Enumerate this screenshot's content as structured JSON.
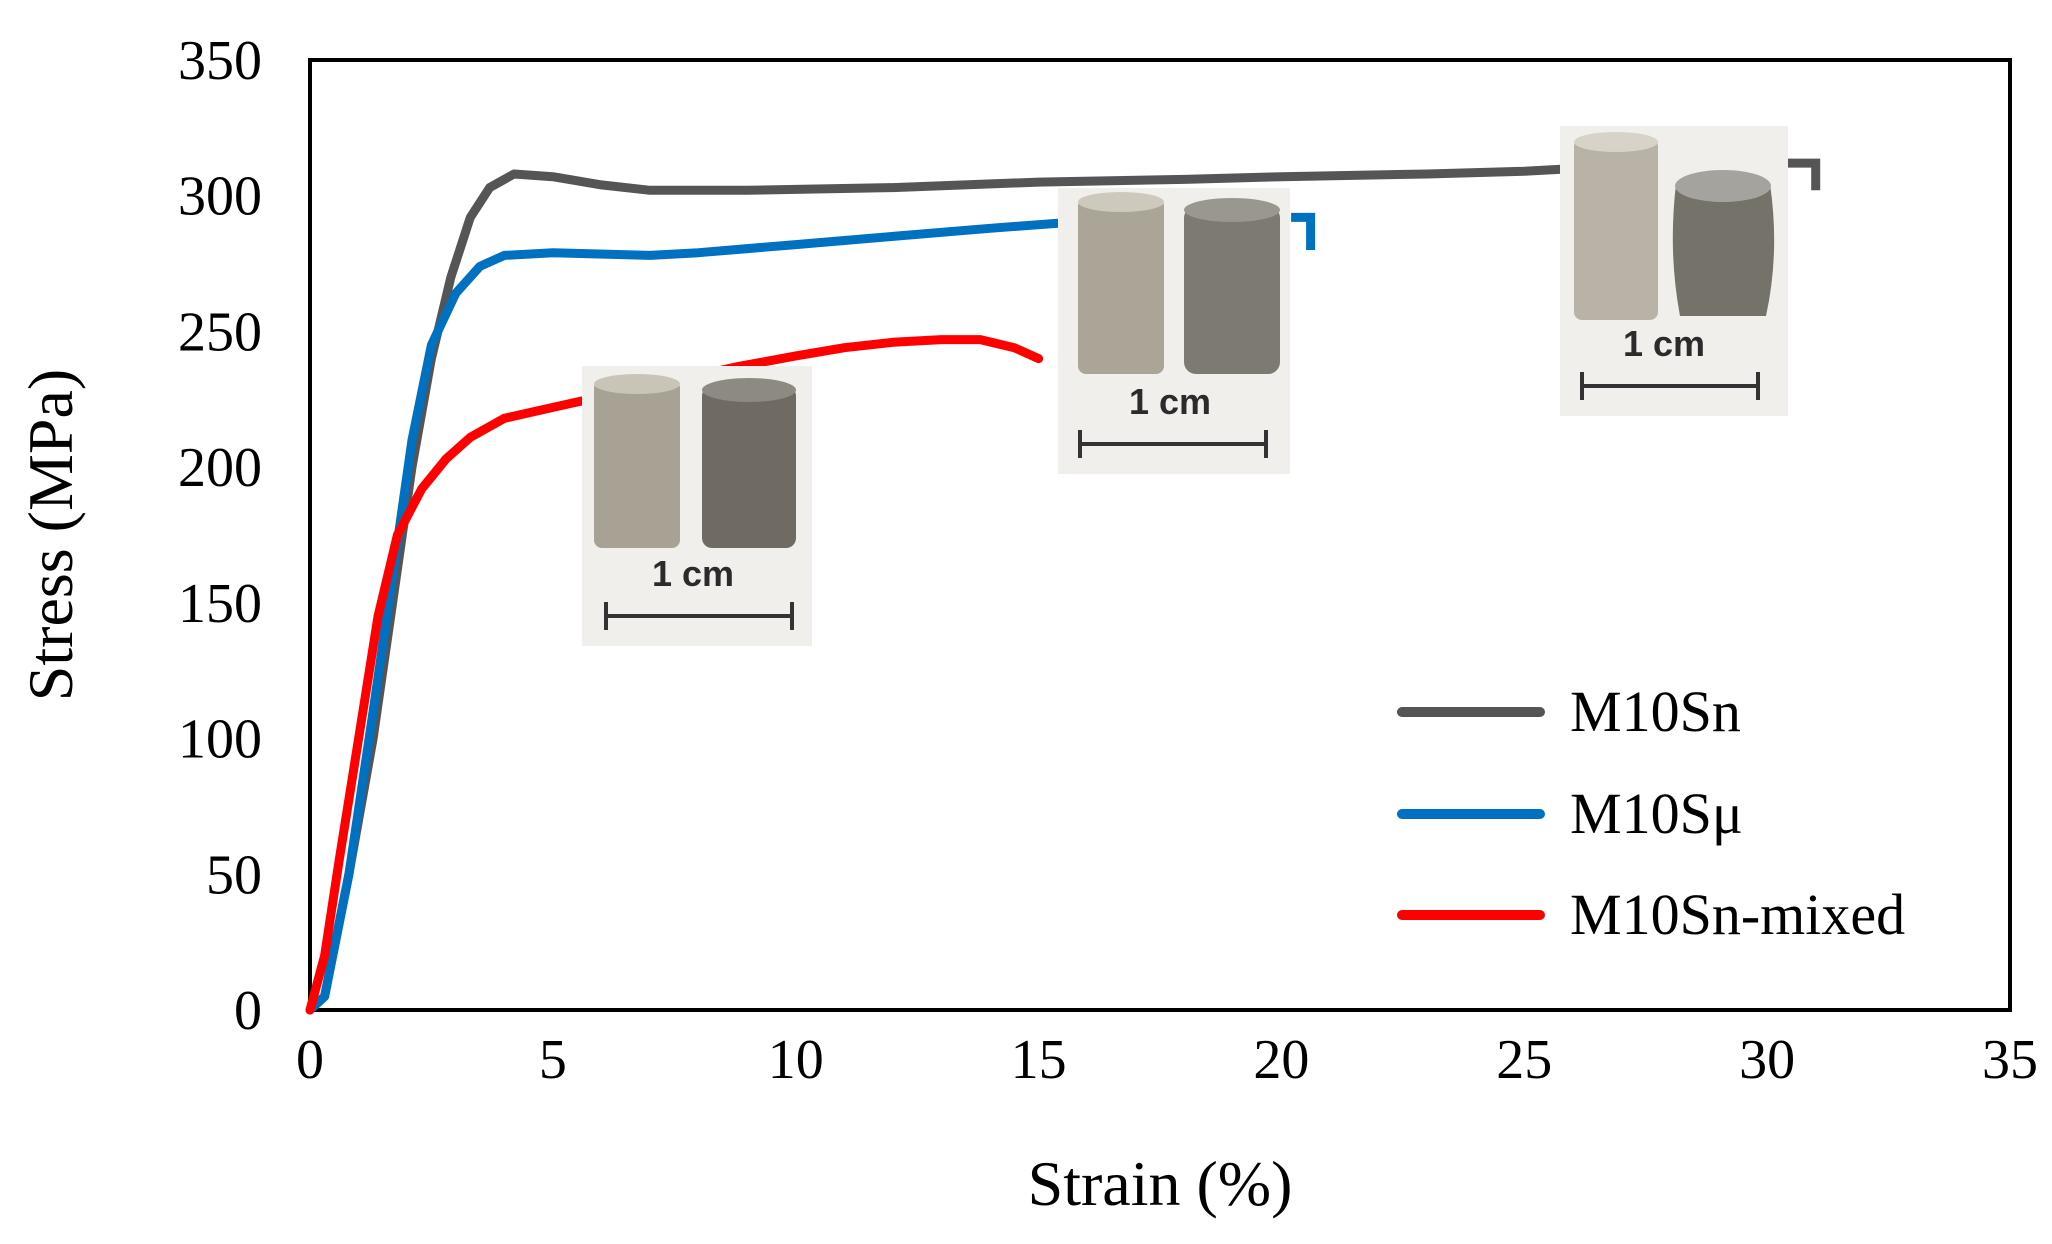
{
  "chart_data": {
    "type": "line",
    "title": "",
    "xlabel": "Strain (%)",
    "ylabel": "Stress (MPa)",
    "xlim": [
      0,
      35
    ],
    "ylim": [
      0,
      350
    ],
    "xticks": [
      0,
      5,
      10,
      15,
      20,
      25,
      30,
      35
    ],
    "yticks": [
      0,
      50,
      100,
      150,
      200,
      250,
      300,
      350
    ],
    "grid": false,
    "legend_position": "bottom-right",
    "series": [
      {
        "name": "M10Sn",
        "color": "#555555",
        "points": [
          [
            0,
            0
          ],
          [
            0.3,
            5
          ],
          [
            0.8,
            50
          ],
          [
            1.3,
            100
          ],
          [
            1.7,
            150
          ],
          [
            2.1,
            200
          ],
          [
            2.5,
            240
          ],
          [
            2.9,
            270
          ],
          [
            3.3,
            292
          ],
          [
            3.7,
            303
          ],
          [
            4.2,
            308
          ],
          [
            5,
            307
          ],
          [
            6,
            304
          ],
          [
            7,
            302
          ],
          [
            9,
            302
          ],
          [
            12,
            303
          ],
          [
            15,
            305
          ],
          [
            18,
            306
          ],
          [
            20,
            307
          ],
          [
            23,
            308
          ],
          [
            25,
            309
          ],
          [
            26,
            310
          ]
        ],
        "end_marker": [
          [
            30,
            312
          ],
          [
            31,
            312
          ],
          [
            31,
            302
          ]
        ]
      },
      {
        "name": "M10Sμ",
        "color": "#0070C0",
        "points": [
          [
            0,
            0
          ],
          [
            0.3,
            5
          ],
          [
            0.8,
            50
          ],
          [
            1.3,
            110
          ],
          [
            1.7,
            160
          ],
          [
            2.1,
            210
          ],
          [
            2.5,
            245
          ],
          [
            3,
            264
          ],
          [
            3.5,
            274
          ],
          [
            4,
            278
          ],
          [
            5,
            279
          ],
          [
            7,
            278
          ],
          [
            8,
            279
          ],
          [
            10,
            282
          ],
          [
            12,
            285
          ],
          [
            14,
            288
          ],
          [
            15.5,
            290
          ]
        ],
        "end_marker": [
          [
            20.2,
            292
          ],
          [
            20.6,
            292
          ],
          [
            20.6,
            280
          ]
        ]
      },
      {
        "name": "M10Sn-mixed",
        "color": "#FF0000",
        "points": [
          [
            0,
            0
          ],
          [
            0.3,
            20
          ],
          [
            0.6,
            55
          ],
          [
            1,
            100
          ],
          [
            1.4,
            145
          ],
          [
            1.8,
            175
          ],
          [
            2.3,
            192
          ],
          [
            2.8,
            203
          ],
          [
            3.3,
            211
          ],
          [
            4,
            218
          ],
          [
            5,
            222
          ],
          [
            5.5,
            224
          ],
          [
            8.8,
            237
          ],
          [
            10,
            241
          ],
          [
            11,
            244
          ],
          [
            12,
            246
          ],
          [
            13,
            247
          ],
          [
            13.8,
            247
          ],
          [
            14.5,
            244
          ],
          [
            15,
            240
          ]
        ]
      }
    ],
    "annotations": [
      "1 cm",
      "1 cm",
      "1 cm"
    ]
  },
  "insets": [
    {
      "label": "1 cm",
      "near_series": "M10Sn-mixed"
    },
    {
      "label": "1 cm",
      "near_series": "M10Sμ"
    },
    {
      "label": "1 cm",
      "near_series": "M10Sn"
    }
  ]
}
